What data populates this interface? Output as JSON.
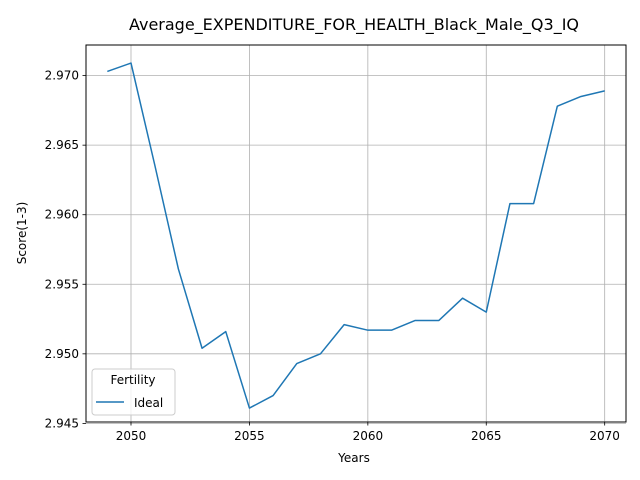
{
  "chart_data": {
    "type": "line",
    "title": "Average_EXPENDITURE_FOR_HEALTH_Black_Male_Q3_IQ",
    "xlabel": "Years",
    "ylabel": "Score(1-3)",
    "xlim": [
      2048.1,
      2070.9
    ],
    "ylim": [
      2.9451,
      2.9722
    ],
    "x_ticks": [
      2050,
      2055,
      2060,
      2065,
      2070
    ],
    "x_tick_labels": [
      "2050",
      "2055",
      "2060",
      "2065",
      "2070"
    ],
    "y_ticks": [
      2.945,
      2.95,
      2.955,
      2.96,
      2.965,
      2.97
    ],
    "y_tick_labels": [
      "2.945",
      "2.950",
      "2.955",
      "2.960",
      "2.965",
      "2.970"
    ],
    "grid": true,
    "legend": {
      "title": "Fertility",
      "placement": "lower-left",
      "entries": [
        "Ideal"
      ]
    },
    "series": [
      {
        "name": "Ideal",
        "color": "#1f77b4",
        "x": [
          2049,
          2050,
          2051,
          2052,
          2053,
          2054,
          2055,
          2056,
          2057,
          2058,
          2059,
          2060,
          2061,
          2062,
          2063,
          2064,
          2065,
          2066,
          2067,
          2068,
          2069,
          2070
        ],
        "y": [
          2.9703,
          2.9709,
          2.9636,
          2.9561,
          2.9504,
          2.9516,
          2.9461,
          2.947,
          2.9493,
          2.95,
          2.9521,
          2.9517,
          2.9517,
          2.9524,
          2.9524,
          2.954,
          2.953,
          2.9608,
          2.9608,
          2.9678,
          2.9685,
          2.9689
        ]
      }
    ]
  }
}
